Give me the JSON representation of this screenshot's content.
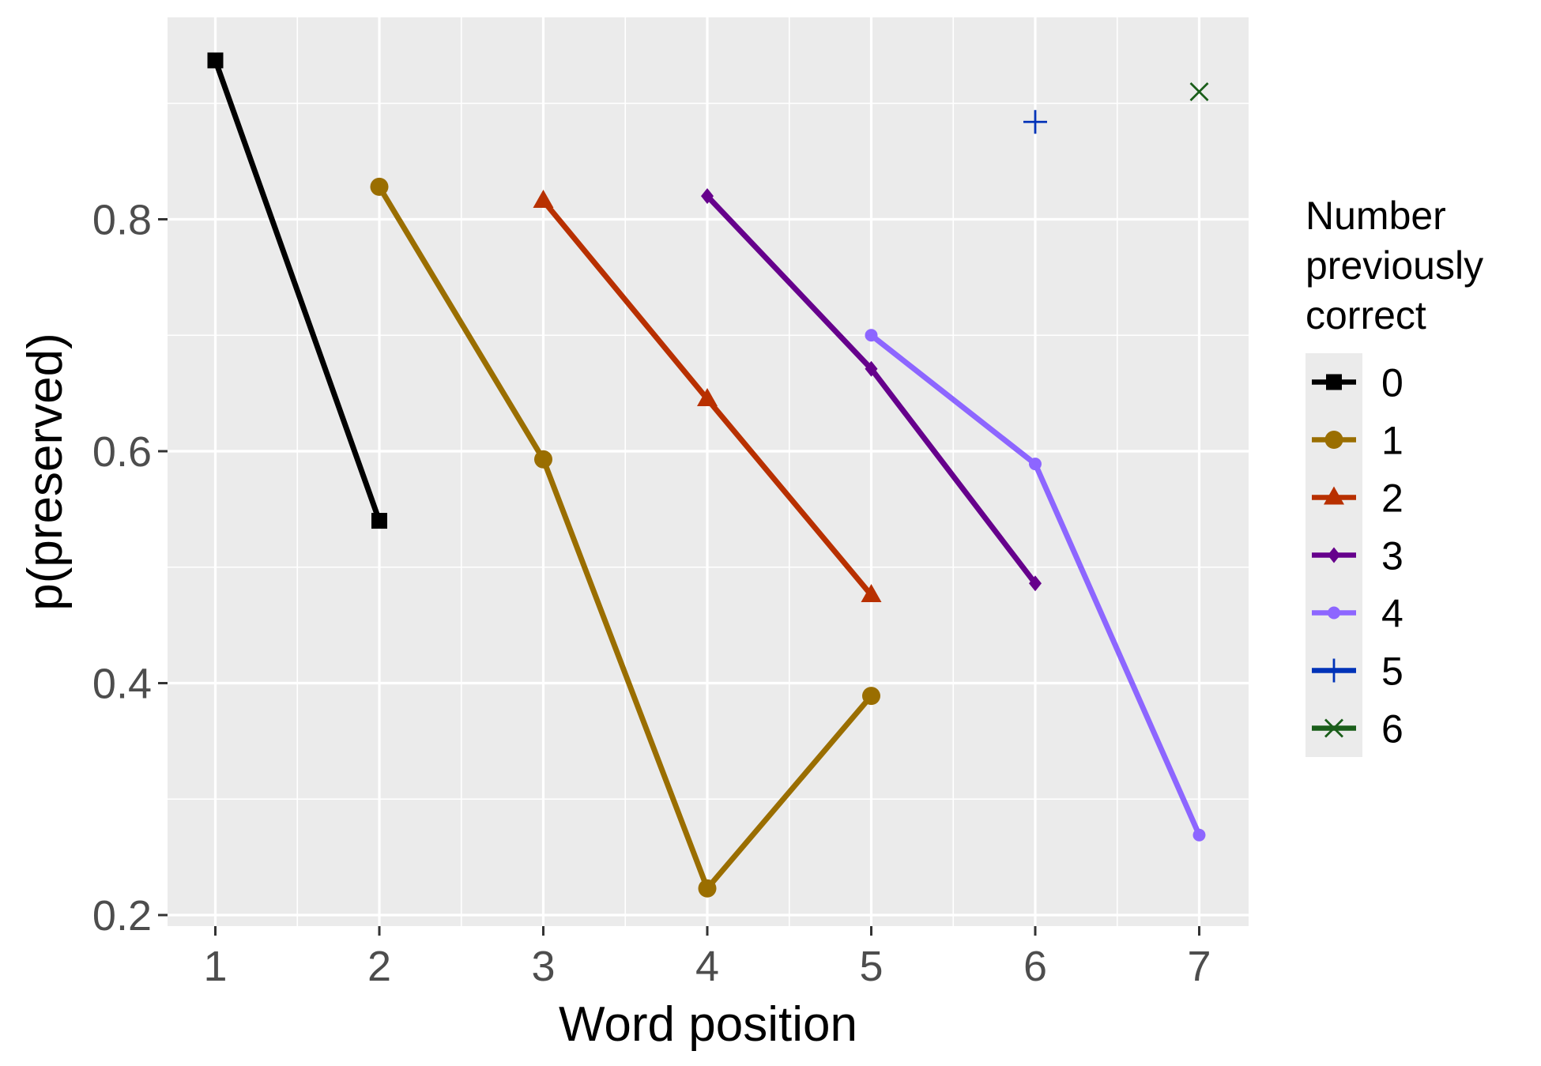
{
  "chart_data": {
    "type": "line",
    "title": "",
    "xlabel": "Word position",
    "ylabel": "p(preserved)",
    "xlim": [
      0.7,
      7.3
    ],
    "ylim": [
      0.188,
      0.97
    ],
    "x_ticks": [
      1,
      2,
      3,
      4,
      5,
      6,
      7
    ],
    "y_ticks": [
      0.2,
      0.4,
      0.6,
      0.8
    ],
    "x_tick_labels": [
      "1",
      "2",
      "3",
      "4",
      "5",
      "6",
      "7"
    ],
    "y_tick_labels": [
      "0.2",
      "0.4",
      "0.6",
      "0.8"
    ],
    "grid": true,
    "background": "#ebebeb",
    "legend": {
      "title_lines": [
        "Number",
        "previously",
        "correct"
      ],
      "position": "right"
    },
    "series": [
      {
        "name": "0",
        "color": "#000000",
        "shape": "square",
        "points": [
          [
            1,
            0.937
          ],
          [
            2,
            0.54
          ]
        ]
      },
      {
        "name": "1",
        "color": "#9a6e00",
        "shape": "circle",
        "points": [
          [
            2,
            0.828
          ],
          [
            3,
            0.593
          ],
          [
            4,
            0.223
          ],
          [
            5,
            0.389
          ]
        ]
      },
      {
        "name": "2",
        "color": "#b83000",
        "shape": "triangle",
        "points": [
          [
            3,
            0.816
          ],
          [
            4,
            0.645
          ],
          [
            5,
            0.476
          ]
        ]
      },
      {
        "name": "3",
        "color": "#66008c",
        "shape": "diamond",
        "points": [
          [
            4,
            0.82
          ],
          [
            5,
            0.671
          ],
          [
            6,
            0.486
          ]
        ]
      },
      {
        "name": "4",
        "color": "#8d66ff",
        "shape": "small-circle",
        "points": [
          [
            5,
            0.7
          ],
          [
            6,
            0.589
          ],
          [
            7,
            0.269
          ]
        ]
      },
      {
        "name": "5",
        "color": "#0033b8",
        "shape": "plus",
        "points": [
          [
            6,
            0.884
          ]
        ]
      },
      {
        "name": "6",
        "color": "#1a5e1a",
        "shape": "cross",
        "points": [
          [
            7,
            0.91
          ]
        ]
      }
    ]
  }
}
